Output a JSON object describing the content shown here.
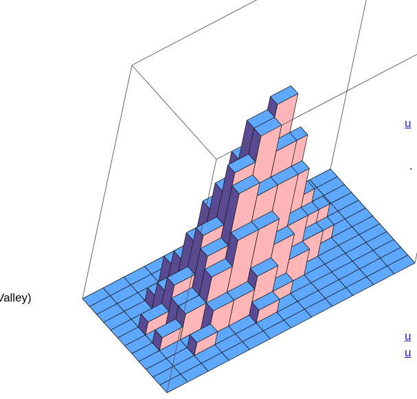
{
  "text_fragments": {
    "link_1": "u",
    "text_1": ".",
    "text_2": "Valley)",
    "link_2": "u",
    "link_3": "u"
  },
  "chart_data": {
    "type": "bar3d",
    "title": "",
    "xlabel": "",
    "ylabel": "",
    "zlabel": "",
    "grid_size": [
      12,
      12
    ],
    "colors": {
      "top": "#5fa8ff",
      "front": "#ffb6b9",
      "side": "#5a4a94",
      "floor": "#5fa8ff",
      "edge": "#1a1a1a",
      "box": "#555555"
    },
    "heights": [
      [
        0,
        0,
        0,
        0,
        0,
        0,
        0,
        0,
        0,
        0,
        0,
        0
      ],
      [
        0,
        0,
        0,
        0,
        0,
        0,
        0,
        0,
        0,
        0,
        0,
        0
      ],
      [
        0,
        0,
        1,
        0,
        0,
        1,
        0,
        0,
        0,
        0,
        0,
        0
      ],
      [
        0,
        0,
        0,
        2,
        2,
        3,
        1,
        0,
        0,
        0,
        0,
        0
      ],
      [
        0,
        1,
        2,
        4,
        6,
        6,
        4,
        2,
        0,
        0,
        0,
        0
      ],
      [
        0,
        0,
        2,
        5,
        9,
        8,
        8,
        4,
        2,
        0,
        0,
        0
      ],
      [
        0,
        1,
        3,
        6,
        10,
        12,
        10,
        7,
        3,
        1,
        0,
        0
      ],
      [
        0,
        0,
        2,
        5,
        8,
        12,
        13,
        9,
        4,
        2,
        0,
        0
      ],
      [
        0,
        0,
        1,
        3,
        6,
        9,
        10,
        7,
        3,
        1,
        0,
        0
      ],
      [
        0,
        0,
        0,
        2,
        3,
        5,
        6,
        4,
        2,
        0,
        0,
        0
      ],
      [
        0,
        0,
        0,
        0,
        1,
        2,
        3,
        1,
        0,
        0,
        0,
        0
      ],
      [
        0,
        0,
        0,
        0,
        0,
        0,
        0,
        0,
        0,
        0,
        0,
        0
      ]
    ],
    "zlim": [
      0,
      18
    ]
  }
}
